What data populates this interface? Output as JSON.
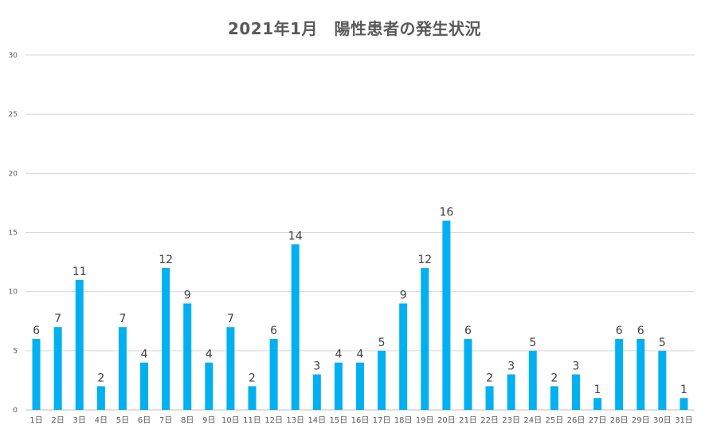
{
  "chart_data": {
    "type": "bar",
    "title": "2021年1月　陽性患者の発生状況",
    "xlabel": "",
    "ylabel": "",
    "ylim": [
      0,
      30
    ],
    "yticks": [
      0,
      5,
      10,
      15,
      20,
      25,
      30
    ],
    "grid": true,
    "legend": "none",
    "bar_color": "#00B0F0",
    "categories": [
      "1日",
      "2日",
      "3日",
      "4日",
      "5日",
      "6日",
      "7日",
      "8日",
      "9日",
      "10日",
      "11日",
      "12日",
      "13日",
      "14日",
      "15日",
      "16日",
      "17日",
      "18日",
      "19日",
      "20日",
      "21日",
      "22日",
      "23日",
      "24日",
      "25日",
      "26日",
      "27日",
      "28日",
      "29日",
      "30日",
      "31日"
    ],
    "values": [
      6,
      7,
      11,
      2,
      7,
      4,
      12,
      9,
      4,
      7,
      2,
      6,
      14,
      3,
      4,
      4,
      5,
      9,
      12,
      16,
      6,
      2,
      3,
      5,
      2,
      3,
      1,
      6,
      6,
      5,
      1
    ]
  }
}
